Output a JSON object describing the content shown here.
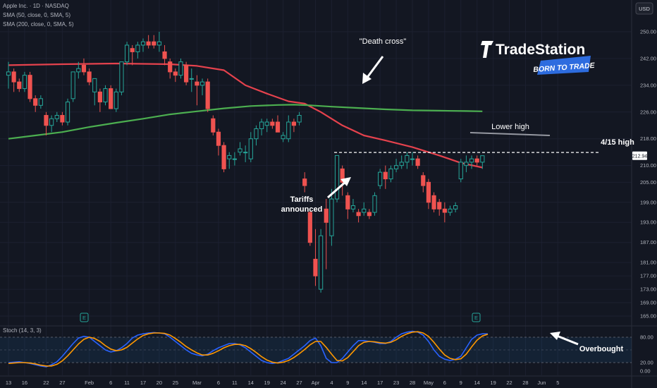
{
  "header": {
    "symbol_line": "Apple Inc. · 1D · NASDAQ",
    "sma50_line": "SMA (50, close, 0, SMA, 5)",
    "sma200_line": "SMA (200, close, 0, SMA, 5)",
    "currency": "USD"
  },
  "brand": {
    "name": "TradeStation",
    "tagline": "BORN TO TRADE"
  },
  "stoch": {
    "label": "Stoch (14, 3, 3)"
  },
  "colors": {
    "background": "#131722",
    "up": "#26a69a",
    "down": "#ef5350",
    "sma50": "#e5424d",
    "sma200": "#4caf50",
    "stoch_k": "#2962ff",
    "stoch_d": "#ff9800",
    "brand_blue": "#2d6cdf"
  },
  "annotations": {
    "death_cross": "\"Death cross\"",
    "tariffs_1": "Tariffs",
    "tariffs_2": "announced",
    "lower_high": "Lower high",
    "high_415": "4/15 high",
    "overbought": "Overbought",
    "earnings_marker": "E"
  },
  "chart_data": [
    {
      "type": "candlestick",
      "title": "Apple Inc. · 1D · NASDAQ",
      "ylabel": "USD",
      "ylim": [
        163,
        253
      ],
      "yticks": [
        165.0,
        169.0,
        173.0,
        177.0,
        181.0,
        187.0,
        193.0,
        199.0,
        205.0,
        210.0,
        218.0,
        226.0,
        234.0,
        242.0,
        250.0
      ],
      "ytick_labels": [
        "165.00",
        "169.00",
        "173.00",
        "177.00",
        "181.00",
        "187.00",
        "193.00",
        "199.00",
        "205.00",
        "210.00",
        "218.00",
        "226.00",
        "234.00",
        "242.00",
        "250.00"
      ],
      "last_price": 212.94,
      "last_price_label": "212.94",
      "reference_levels": [
        {
          "name": "4/15 high",
          "value": 213.9
        }
      ],
      "xticks": [
        {
          "label": "13",
          "index": 0
        },
        {
          "label": "16",
          "index": 3
        },
        {
          "label": "22",
          "index": 7
        },
        {
          "label": "27",
          "index": 10
        },
        {
          "label": "Feb",
          "index": 15
        },
        {
          "label": "6",
          "index": 19
        },
        {
          "label": "11",
          "index": 22
        },
        {
          "label": "17",
          "index": 25
        },
        {
          "label": "20",
          "index": 28
        },
        {
          "label": "25",
          "index": 31
        },
        {
          "label": "Mar",
          "index": 35
        },
        {
          "label": "6",
          "index": 39
        },
        {
          "label": "11",
          "index": 42
        },
        {
          "label": "14",
          "index": 45
        },
        {
          "label": "19",
          "index": 48
        },
        {
          "label": "24",
          "index": 51
        },
        {
          "label": "27",
          "index": 54
        },
        {
          "label": "Apr",
          "index": 57
        },
        {
          "label": "4",
          "index": 60
        },
        {
          "label": "9",
          "index": 63
        },
        {
          "label": "14",
          "index": 66
        },
        {
          "label": "17",
          "index": 69
        },
        {
          "label": "23",
          "index": 72
        },
        {
          "label": "28",
          "index": 75
        },
        {
          "label": "May",
          "index": 78
        },
        {
          "label": "6",
          "index": 81
        },
        {
          "label": "9",
          "index": 84
        },
        {
          "label": "14",
          "index": 87
        },
        {
          "label": "19",
          "index": 90
        },
        {
          "label": "22",
          "index": 93
        },
        {
          "label": "28",
          "index": 96
        },
        {
          "label": "Jun",
          "index": 99
        },
        {
          "label": "5",
          "index": 102
        }
      ],
      "candles": [
        {
          "o": 237,
          "h": 241,
          "l": 233,
          "c": 238
        },
        {
          "o": 238,
          "h": 239,
          "l": 232,
          "c": 235
        },
        {
          "o": 235,
          "h": 236,
          "l": 232,
          "c": 233
        },
        {
          "o": 233,
          "h": 238,
          "l": 232,
          "c": 237
        },
        {
          "o": 237,
          "h": 238,
          "l": 229,
          "c": 230
        },
        {
          "o": 230,
          "h": 231,
          "l": 226,
          "c": 228
        },
        {
          "o": 228,
          "h": 231,
          "l": 227,
          "c": 230
        },
        {
          "o": 225,
          "h": 226,
          "l": 219,
          "c": 222
        },
        {
          "o": 222,
          "h": 225,
          "l": 220,
          "c": 224
        },
        {
          "o": 224,
          "h": 226,
          "l": 223,
          "c": 225
        },
        {
          "o": 225,
          "h": 226,
          "l": 222,
          "c": 223
        },
        {
          "o": 223,
          "h": 230,
          "l": 222,
          "c": 229
        },
        {
          "o": 230,
          "h": 238,
          "l": 229,
          "c": 238
        },
        {
          "o": 238,
          "h": 241,
          "l": 236,
          "c": 239
        },
        {
          "o": 240,
          "h": 242,
          "l": 237,
          "c": 238
        },
        {
          "o": 238,
          "h": 239,
          "l": 234,
          "c": 235
        },
        {
          "o": 232,
          "h": 236,
          "l": 228,
          "c": 236
        },
        {
          "o": 232,
          "h": 233,
          "l": 226,
          "c": 229
        },
        {
          "o": 229,
          "h": 234,
          "l": 228,
          "c": 233
        },
        {
          "o": 233,
          "h": 234,
          "l": 227,
          "c": 227
        },
        {
          "o": 227,
          "h": 233,
          "l": 226,
          "c": 232
        },
        {
          "o": 232,
          "h": 241,
          "l": 231,
          "c": 241
        },
        {
          "o": 241,
          "h": 247,
          "l": 240,
          "c": 246
        },
        {
          "o": 245,
          "h": 246,
          "l": 240,
          "c": 244
        },
        {
          "o": 244,
          "h": 247,
          "l": 242,
          "c": 246
        },
        {
          "o": 246,
          "h": 248,
          "l": 244,
          "c": 247
        },
        {
          "o": 247,
          "h": 249,
          "l": 245,
          "c": 246
        },
        {
          "o": 247,
          "h": 249,
          "l": 245,
          "c": 246
        },
        {
          "o": 246,
          "h": 250,
          "l": 244,
          "c": 247
        },
        {
          "o": 244,
          "h": 246,
          "l": 240,
          "c": 242
        },
        {
          "o": 241,
          "h": 242,
          "l": 236,
          "c": 238
        },
        {
          "o": 238,
          "h": 239,
          "l": 235,
          "c": 237
        },
        {
          "o": 237,
          "h": 242,
          "l": 236,
          "c": 241
        },
        {
          "o": 240,
          "h": 241,
          "l": 234,
          "c": 235
        },
        {
          "o": 236,
          "h": 239,
          "l": 232,
          "c": 236
        },
        {
          "o": 235,
          "h": 237,
          "l": 228,
          "c": 234
        },
        {
          "o": 234,
          "h": 236,
          "l": 231,
          "c": 235
        },
        {
          "o": 235,
          "h": 236,
          "l": 226,
          "c": 227
        },
        {
          "o": 224,
          "h": 225,
          "l": 219,
          "c": 220
        },
        {
          "o": 220,
          "h": 221,
          "l": 213,
          "c": 216
        },
        {
          "o": 216,
          "h": 217,
          "l": 208,
          "c": 209
        },
        {
          "o": 212,
          "h": 214,
          "l": 209,
          "c": 213
        },
        {
          "o": 212,
          "h": 214,
          "l": 210,
          "c": 212
        },
        {
          "o": 214,
          "h": 217,
          "l": 213,
          "c": 215
        },
        {
          "o": 214,
          "h": 216,
          "l": 211,
          "c": 214
        },
        {
          "o": 212,
          "h": 220,
          "l": 211,
          "c": 218
        },
        {
          "o": 218,
          "h": 222,
          "l": 216,
          "c": 221
        },
        {
          "o": 221,
          "h": 224,
          "l": 219,
          "c": 223
        },
        {
          "o": 222,
          "h": 224,
          "l": 220,
          "c": 223
        },
        {
          "o": 223,
          "h": 224,
          "l": 221,
          "c": 222
        },
        {
          "o": 223,
          "h": 225,
          "l": 220,
          "c": 220
        },
        {
          "o": 218,
          "h": 220,
          "l": 217,
          "c": 219
        },
        {
          "o": 218,
          "h": 225,
          "l": 217,
          "c": 223
        },
        {
          "o": 223,
          "h": 224,
          "l": 220,
          "c": 222
        },
        {
          "o": 223,
          "h": 226,
          "l": 222,
          "c": 225
        },
        {
          "o": 206,
          "h": 208,
          "l": 202,
          "c": 204
        },
        {
          "o": 196,
          "h": 197,
          "l": 186,
          "c": 187
        },
        {
          "o": 182,
          "h": 191,
          "l": 174,
          "c": 177
        },
        {
          "o": 173,
          "h": 191,
          "l": 172,
          "c": 189
        },
        {
          "o": 197,
          "h": 200,
          "l": 179,
          "c": 193
        },
        {
          "o": 189,
          "h": 203,
          "l": 186,
          "c": 200
        },
        {
          "o": 200,
          "h": 213,
          "l": 199,
          "c": 213
        },
        {
          "o": 209,
          "h": 210,
          "l": 201,
          "c": 205
        },
        {
          "o": 201,
          "h": 202,
          "l": 194,
          "c": 197
        },
        {
          "o": 197,
          "h": 200,
          "l": 196,
          "c": 198
        },
        {
          "o": 196,
          "h": 197,
          "l": 193,
          "c": 195
        },
        {
          "o": 196,
          "h": 199,
          "l": 195,
          "c": 197
        },
        {
          "o": 196,
          "h": 197,
          "l": 194,
          "c": 195
        },
        {
          "o": 196,
          "h": 202,
          "l": 195,
          "c": 201
        },
        {
          "o": 204,
          "h": 209,
          "l": 203,
          "c": 208
        },
        {
          "o": 208,
          "h": 210,
          "l": 203,
          "c": 206
        },
        {
          "o": 206,
          "h": 210,
          "l": 205,
          "c": 209
        },
        {
          "o": 209,
          "h": 212,
          "l": 208,
          "c": 210
        },
        {
          "o": 210,
          "h": 213,
          "l": 209,
          "c": 211
        },
        {
          "o": 211,
          "h": 214,
          "l": 209,
          "c": 213
        },
        {
          "o": 212,
          "h": 214,
          "l": 210,
          "c": 212
        },
        {
          "o": 212,
          "h": 213,
          "l": 209,
          "c": 210
        },
        {
          "o": 207,
          "h": 208,
          "l": 202,
          "c": 204
        },
        {
          "o": 205,
          "h": 206,
          "l": 197,
          "c": 199
        },
        {
          "o": 201,
          "h": 202,
          "l": 196,
          "c": 197
        },
        {
          "o": 199,
          "h": 200,
          "l": 195,
          "c": 197
        },
        {
          "o": 197,
          "h": 199,
          "l": 193,
          "c": 196
        },
        {
          "o": 196,
          "h": 198,
          "l": 195,
          "c": 197
        },
        {
          "o": 197,
          "h": 199,
          "l": 196,
          "c": 198
        },
        {
          "o": 206,
          "h": 212,
          "l": 205,
          "c": 211
        },
        {
          "o": 210,
          "h": 213,
          "l": 208,
          "c": 211
        },
        {
          "o": 211,
          "h": 213,
          "l": 209,
          "c": 212
        },
        {
          "o": 212,
          "h": 213,
          "l": 210,
          "c": 211
        },
        {
          "o": 211,
          "h": 213,
          "l": 209,
          "c": 212.94
        }
      ],
      "series": [
        {
          "name": "SMA (50, close, 0, SMA, 5)",
          "points": [
            [
              0,
              240
            ],
            [
              10,
              240.3
            ],
            [
              20,
              240.5
            ],
            [
              30,
              240.3
            ],
            [
              35,
              239.8
            ],
            [
              40,
              238.5
            ],
            [
              44,
              234
            ],
            [
              48,
              231.5
            ],
            [
              52,
              229.2
            ],
            [
              55,
              228.5
            ],
            [
              58,
              226
            ],
            [
              62,
              222
            ],
            [
              66,
              219
            ],
            [
              70,
              217.5
            ],
            [
              75,
              215.5
            ],
            [
              80,
              213
            ],
            [
              84,
              210.8
            ],
            [
              88,
              209.4
            ]
          ]
        },
        {
          "name": "SMA (200, close, 0, SMA, 5)",
          "points": [
            [
              0,
              218
            ],
            [
              5,
              219
            ],
            [
              10,
              220
            ],
            [
              15,
              221.5
            ],
            [
              20,
              222.8
            ],
            [
              25,
              224
            ],
            [
              30,
              225.3
            ],
            [
              35,
              226.2
            ],
            [
              40,
              227.1
            ],
            [
              45,
              227.8
            ],
            [
              50,
              228.1
            ],
            [
              53,
              228.2
            ],
            [
              56,
              228.0
            ],
            [
              60,
              227.6
            ],
            [
              65,
              227.2
            ],
            [
              70,
              226.8
            ],
            [
              75,
              226.5
            ],
            [
              80,
              226.4
            ],
            [
              85,
              226.3
            ],
            [
              88,
              226.2
            ]
          ]
        }
      ]
    },
    {
      "type": "line",
      "title": "Stoch (14, 3, 3)",
      "ylim": [
        -10,
        100
      ],
      "yticks": [
        0,
        20,
        80
      ],
      "ytick_labels": [
        "0.00",
        "20.00",
        "80.00"
      ],
      "guide_levels": [
        20,
        50,
        80
      ],
      "series": [
        {
          "name": "%K",
          "values": [
            20,
            21,
            22,
            20,
            18,
            15,
            12,
            10,
            15,
            22,
            35,
            50,
            65,
            78,
            82,
            80,
            70,
            60,
            50,
            45,
            48,
            55,
            65,
            78,
            85,
            88,
            90,
            91,
            90,
            88,
            80,
            70,
            60,
            50,
            42,
            38,
            36,
            40,
            48,
            55,
            60,
            65,
            65,
            62,
            55,
            45,
            35,
            25,
            20,
            18,
            20,
            25,
            30,
            40,
            50,
            60,
            72,
            78,
            60,
            30,
            20,
            20,
            30,
            45,
            60,
            72,
            72,
            70,
            68,
            65,
            65,
            70,
            80,
            88,
            92,
            94,
            92,
            85,
            70,
            50,
            35,
            28,
            25,
            28,
            35,
            55,
            75,
            85,
            88,
            88
          ]
        },
        {
          "name": "%D",
          "values": [
            18,
            19,
            20,
            20,
            19,
            17,
            14,
            12,
            12,
            16,
            24,
            36,
            50,
            64,
            75,
            80,
            77,
            70,
            60,
            52,
            48,
            50,
            56,
            66,
            76,
            84,
            88,
            90,
            90,
            89,
            85,
            77,
            68,
            58,
            50,
            43,
            38,
            38,
            42,
            48,
            55,
            60,
            63,
            63,
            60,
            53,
            44,
            34,
            26,
            21,
            19,
            21,
            25,
            32,
            41,
            51,
            62,
            70,
            70,
            56,
            40,
            25,
            24,
            32,
            46,
            60,
            68,
            70,
            69,
            67,
            66,
            68,
            74,
            82,
            88,
            92,
            93,
            90,
            82,
            68,
            52,
            38,
            30,
            27,
            29,
            40,
            57,
            73,
            83,
            87
          ]
        }
      ]
    }
  ]
}
